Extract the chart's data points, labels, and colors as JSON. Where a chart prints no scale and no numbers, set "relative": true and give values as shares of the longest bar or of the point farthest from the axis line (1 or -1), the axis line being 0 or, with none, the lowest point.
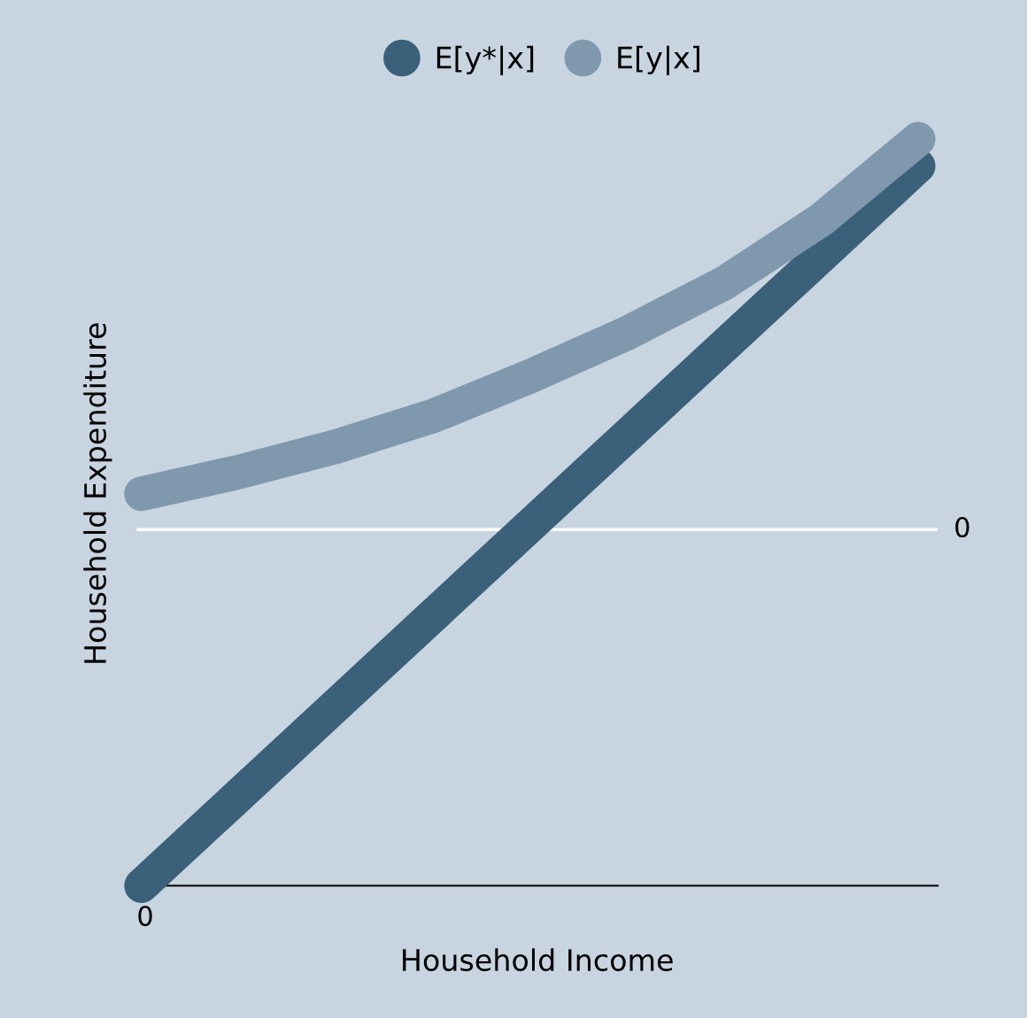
{
  "chart_data": {
    "type": "line",
    "relative": true,
    "xlabel": "Household Income",
    "ylabel": "Household Expenditure",
    "categories": [
      null,
      null,
      null,
      null,
      null,
      null,
      null,
      null,
      null
    ],
    "annotations": [
      "0"
    ],
    "series": [
      {
        "name": "E[y*|x]",
        "color": "#3b6079",
        "values": [
          0,
          0.1205,
          0.241,
          0.3615,
          0.482,
          0.6025,
          0.723,
          0.8435,
          0.964
        ]
      },
      {
        "name": "E[y|x]",
        "color": "#7f98ae",
        "values": [
          0.525,
          0.554,
          0.588,
          0.629,
          0.682,
          0.74,
          0.807,
          0.892,
          1
        ]
      }
    ],
    "ref_lines": [
      {
        "axis": "y",
        "value": 0.477,
        "label": "0",
        "color": "#ffffff"
      }
    ],
    "legend": "top",
    "line_style": "solid",
    "grid": false
  }
}
